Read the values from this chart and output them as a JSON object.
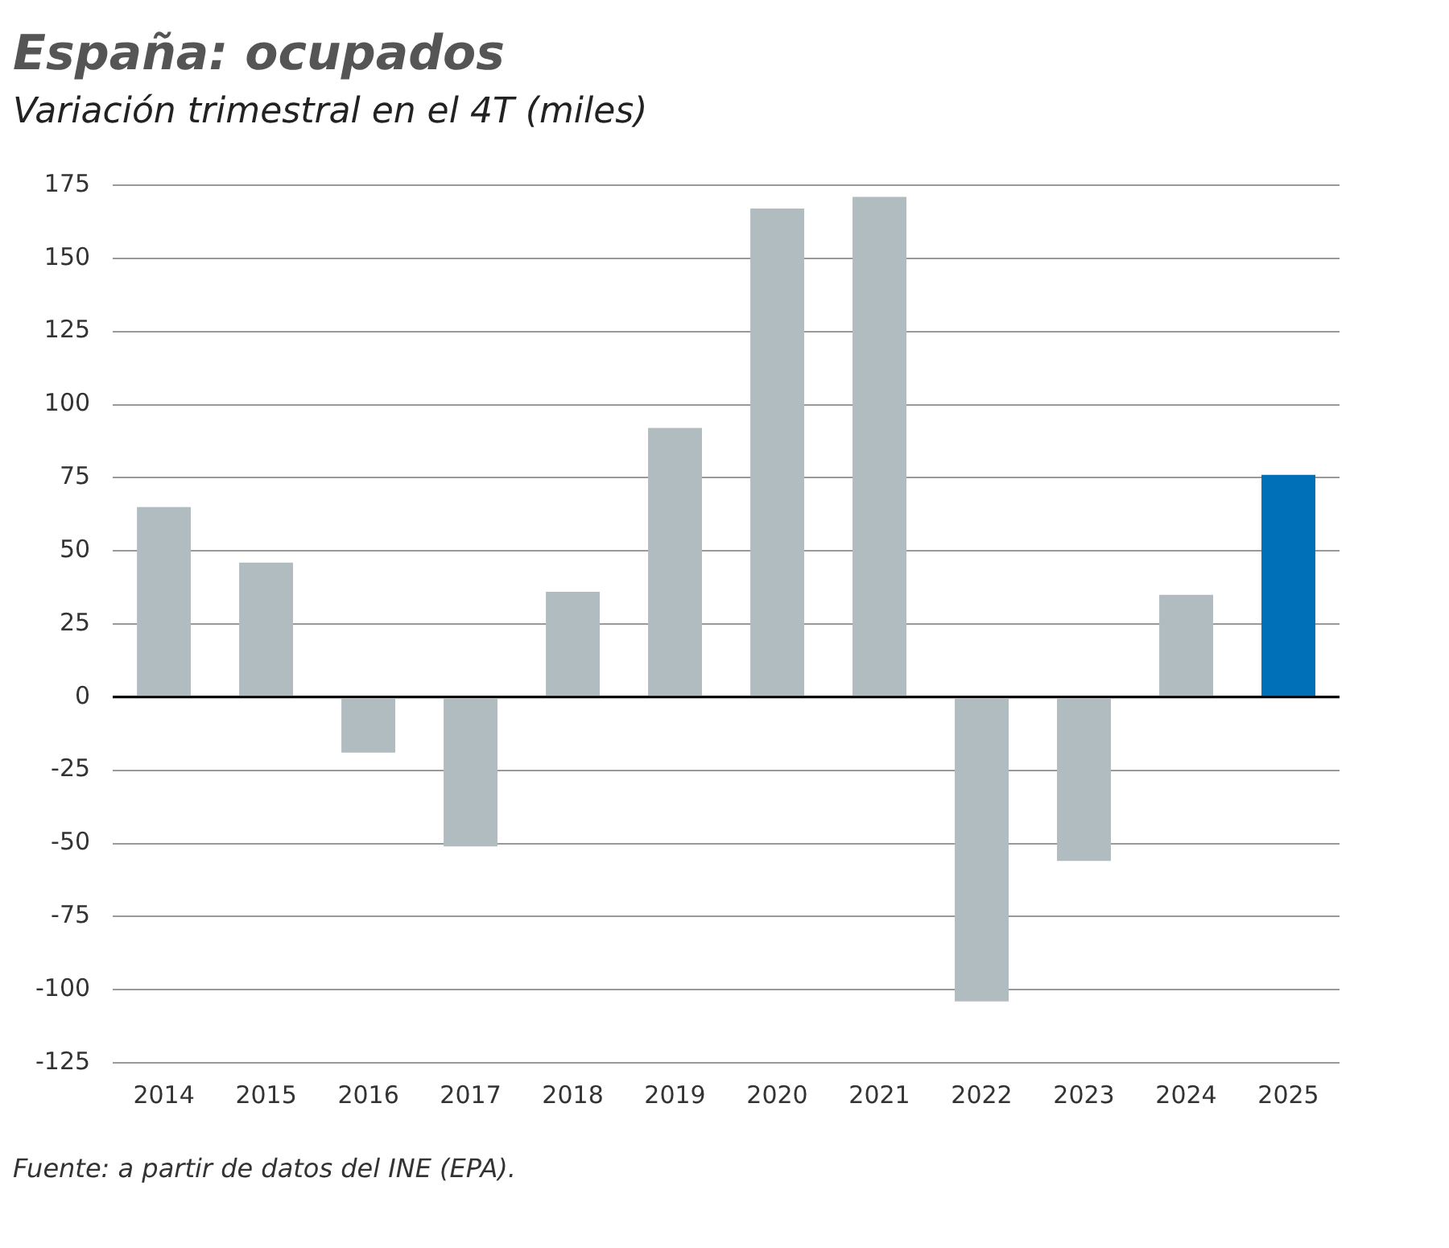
{
  "chart_data": {
    "type": "bar",
    "title": "España: ocupados",
    "subtitle": "Variación trimestral en el 4T (miles)",
    "categories": [
      "2014",
      "2015",
      "2016",
      "2017",
      "2018",
      "2019",
      "2020",
      "2021",
      "2022",
      "2023",
      "2024",
      "2025"
    ],
    "values": [
      65,
      46,
      -19,
      -51,
      36,
      92,
      167,
      171,
      -104,
      -56,
      35,
      76
    ],
    "colors": [
      "#b1bcc0",
      "#b1bcc0",
      "#b1bcc0",
      "#b1bcc0",
      "#b1bcc0",
      "#b1bcc0",
      "#b1bcc0",
      "#b1bcc0",
      "#b1bcc0",
      "#b1bcc0",
      "#b1bcc0",
      "#0070b8"
    ],
    "ylim": [
      -125,
      175
    ],
    "yticks": [
      -125,
      -100,
      -75,
      -50,
      -25,
      0,
      25,
      50,
      75,
      100,
      125,
      150,
      175
    ],
    "grid": "y",
    "legend": false,
    "annotations": [
      "Fuente: a partir de datos del INE (EPA)."
    ]
  }
}
